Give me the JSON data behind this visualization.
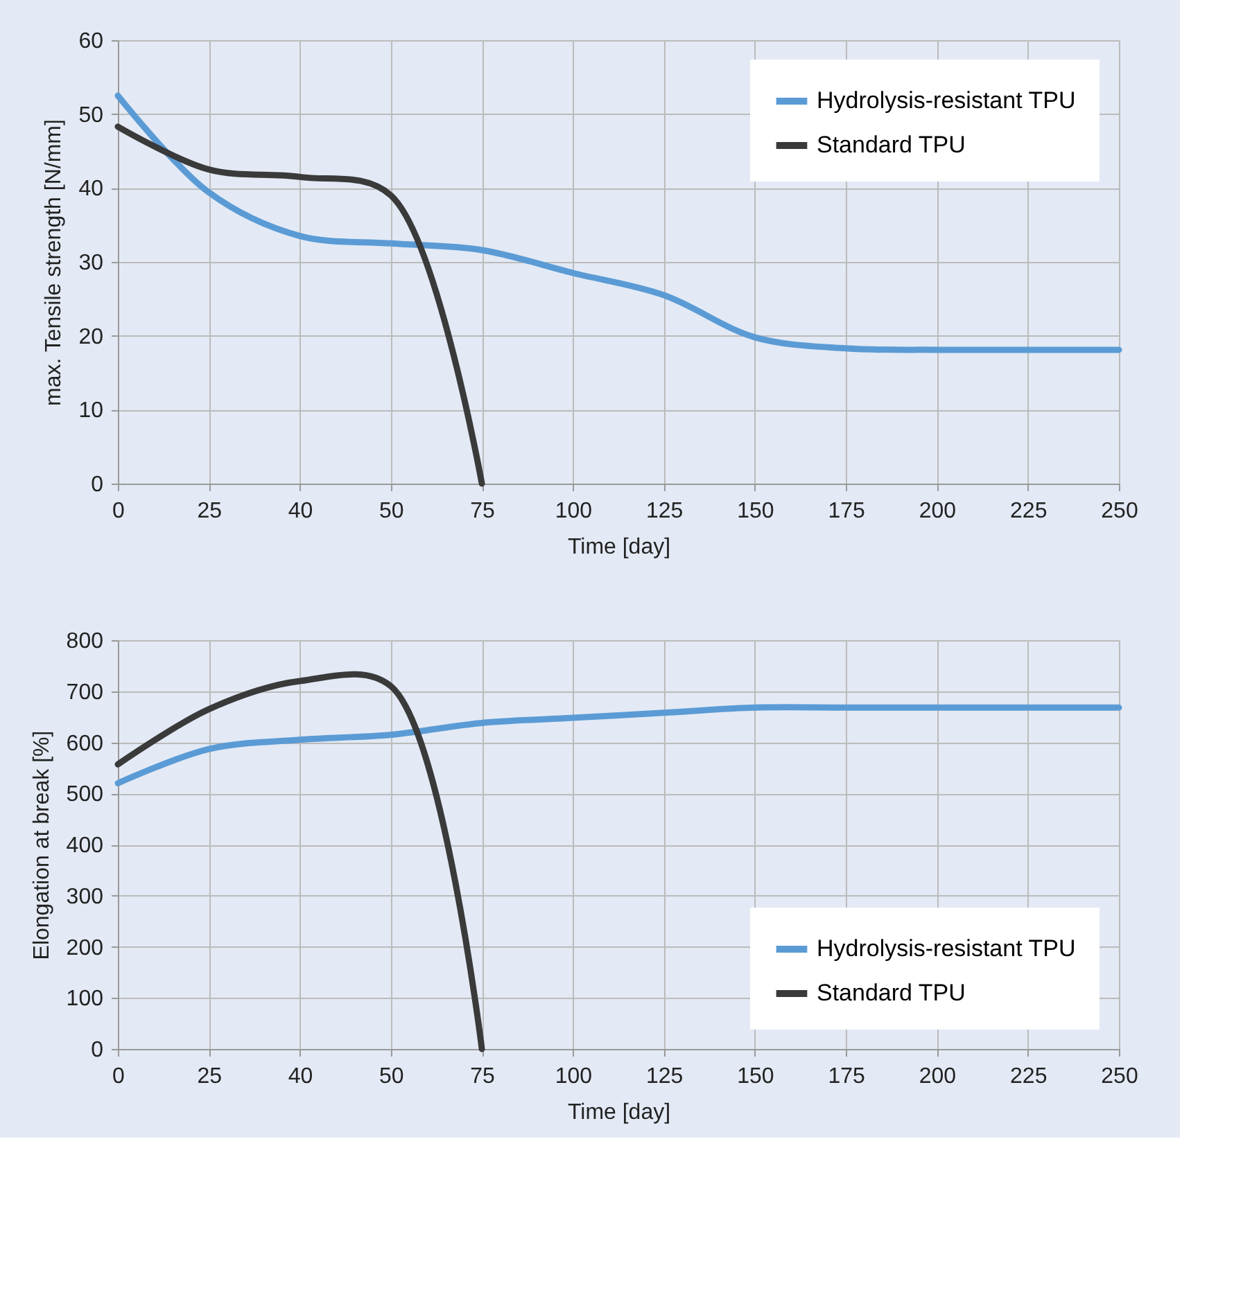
{
  "chart_data": [
    {
      "type": "line",
      "xlabel": "Time [day]",
      "ylabel": "max. Tensile strength [N/mm]",
      "categories": [
        "0",
        "25",
        "40",
        "50",
        "75",
        "100",
        "125",
        "150",
        "175",
        "200",
        "225",
        "250"
      ],
      "ylim": [
        0,
        60
      ],
      "yticks": [
        0,
        10,
        20,
        30,
        40,
        50,
        60
      ],
      "grid": true,
      "legend": "top right",
      "line_style": "solid",
      "marker": "none",
      "series": [
        {
          "name": "Hydrolysis-resistant TPU",
          "color": "#5b9bd5",
          "values": [
            52.5,
            39.4,
            33.5,
            32.5,
            31.6,
            28.5,
            25.5,
            19.8,
            18.3,
            18.1,
            18.1,
            18.1
          ]
        },
        {
          "name": "Standard TPU",
          "color": "#3a3a3a",
          "values": [
            48.3,
            42.5,
            41.5,
            39,
            0,
            null,
            null,
            null,
            null,
            null,
            null,
            null
          ]
        }
      ]
    },
    {
      "type": "line",
      "xlabel": "Time [day]",
      "ylabel": "Elongation at break [%]",
      "categories": [
        "0",
        "25",
        "40",
        "50",
        "75",
        "100",
        "125",
        "150",
        "175",
        "200",
        "225",
        "250"
      ],
      "ylim": [
        0,
        800
      ],
      "yticks": [
        0,
        100,
        200,
        300,
        400,
        500,
        600,
        700,
        800
      ],
      "grid": true,
      "legend": "bottom right",
      "line_style": "solid",
      "marker": "none",
      "series": [
        {
          "name": "Hydrolysis-resistant TPU",
          "color": "#5b9bd5",
          "values": [
            520,
            587,
            605,
            615,
            638,
            648,
            658,
            668,
            668,
            668,
            668,
            668
          ]
        },
        {
          "name": "Standard TPU",
          "color": "#3a3a3a",
          "values": [
            557,
            665,
            720,
            710,
            0,
            null,
            null,
            null,
            null,
            null,
            null,
            null
          ]
        }
      ]
    }
  ]
}
